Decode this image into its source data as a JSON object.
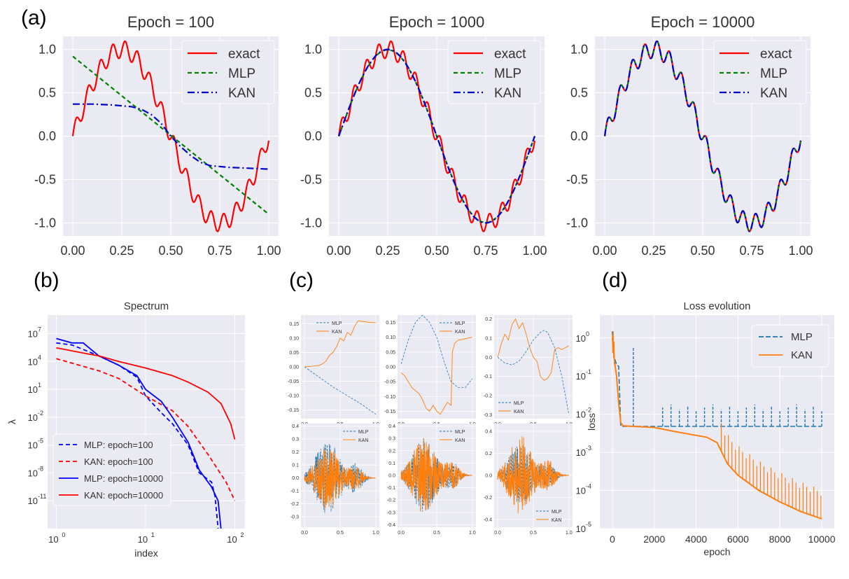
{
  "colors": {
    "panel_bg": "#eaeaf2",
    "grid": "#ffffff",
    "exact": "#ff0000",
    "mlp_a": "#008000",
    "kan_a": "#0000cc",
    "mlp": "#1f77b4",
    "kan": "#ff7f0e",
    "spec_blue": "#0000ff",
    "spec_red": "#ff0000"
  },
  "labels": {
    "a": "(a)",
    "b": "(b)",
    "c": "(c)",
    "d": "(d)"
  },
  "chart_data": [
    {
      "id": "a1",
      "type": "line",
      "title": "Epoch = 100",
      "x_ticks": [
        "0.00",
        "0.25",
        "0.50",
        "0.75",
        "1.00"
      ],
      "y_ticks": [
        "-1.0",
        "-0.5",
        "0.0",
        "0.5",
        "1.0"
      ],
      "xlim": [
        -0.05,
        1.05
      ],
      "ylim": [
        -1.15,
        1.15
      ],
      "legend": [
        "exact",
        "MLP",
        "KAN"
      ],
      "legend_position": "top-right",
      "series": [
        {
          "name": "exact",
          "kind": "exact"
        },
        {
          "name": "MLP",
          "kind": "line",
          "x": [
            0,
            1
          ],
          "y": [
            0.92,
            -0.9
          ]
        },
        {
          "name": "KAN",
          "kind": "poly",
          "x": [
            0,
            0.1,
            0.2,
            0.3,
            0.35,
            0.4,
            0.45,
            0.5,
            0.55,
            0.6,
            0.65,
            0.7,
            0.8,
            0.9,
            1.0
          ],
          "y": [
            0.37,
            0.37,
            0.36,
            0.34,
            0.31,
            0.25,
            0.15,
            0.0,
            -0.12,
            -0.22,
            -0.3,
            -0.34,
            -0.36,
            -0.37,
            -0.38
          ]
        }
      ]
    },
    {
      "id": "a2",
      "type": "line",
      "title": "Epoch = 1000",
      "x_ticks": [
        "0.00",
        "0.25",
        "0.50",
        "0.75",
        "1.00"
      ],
      "y_ticks": [
        "-1.0",
        "-0.5",
        "0.0",
        "0.5",
        "1.0"
      ],
      "xlim": [
        -0.05,
        1.05
      ],
      "ylim": [
        -1.15,
        1.15
      ],
      "legend": [
        "exact",
        "MLP",
        "KAN"
      ],
      "legend_position": "top-right",
      "series": [
        {
          "name": "exact",
          "kind": "exact"
        },
        {
          "name": "MLP",
          "kind": "sine",
          "amp": 0.995
        },
        {
          "name": "KAN",
          "kind": "sine",
          "amp": 1.0
        }
      ]
    },
    {
      "id": "a3",
      "type": "line",
      "title": "Epoch = 10000",
      "x_ticks": [
        "0.00",
        "0.25",
        "0.50",
        "0.75",
        "1.00"
      ],
      "y_ticks": [
        "-1.0",
        "-0.5",
        "0.0",
        "0.5",
        "1.0"
      ],
      "xlim": [
        -0.05,
        1.05
      ],
      "ylim": [
        -1.15,
        1.15
      ],
      "legend": [
        "exact",
        "MLP",
        "KAN"
      ],
      "legend_position": "top-right",
      "series": [
        {
          "name": "exact",
          "kind": "exact"
        },
        {
          "name": "MLP",
          "kind": "exact"
        },
        {
          "name": "KAN",
          "kind": "exact"
        }
      ]
    },
    {
      "id": "b",
      "type": "line",
      "title": "Spectrum",
      "xlabel": "index",
      "ylabel": "λ",
      "xscale": "log",
      "yscale": "log",
      "xlim": [
        0.8,
        130
      ],
      "ylim": [
        1e-14,
        1000000000.0
      ],
      "x_ticks": [
        {
          "v": 1,
          "t": "10",
          "e": "0"
        },
        {
          "v": 10,
          "t": "10",
          "e": "1"
        },
        {
          "v": 100,
          "t": "10",
          "e": "2"
        }
      ],
      "y_ticks": [
        {
          "v": 10000000.0,
          "t": "10",
          "e": "7"
        },
        {
          "v": 10000.0,
          "t": "10",
          "e": "4"
        },
        {
          "v": 10,
          "t": "10",
          "e": "1"
        },
        {
          "v": 0.01,
          "t": "10",
          "e": "-2"
        },
        {
          "v": 1e-05,
          "t": "10",
          "e": "-5"
        },
        {
          "v": 1e-08,
          "t": "10",
          "e": "-8"
        },
        {
          "v": 1e-11,
          "t": "10",
          "e": "-11"
        }
      ],
      "legend": [
        "MLP: epoch=100",
        "KAN: epoch=100",
        "MLP: epoch=10000",
        "KAN: epoch=10000"
      ],
      "legend_position": "lower-left",
      "series": [
        {
          "name": "MLP: epoch=100",
          "x": [
            1,
            1.5,
            2,
            3,
            5,
            8,
            10,
            15,
            20,
            30,
            40,
            55,
            60,
            65
          ],
          "y": [
            1000000.0,
            600000.0,
            200000.0,
            40000.0,
            4000.0,
            200,
            2,
            0.03,
            0.002,
            1e-05,
            1e-08,
            1e-09,
            3e-11,
            1e-14
          ]
        },
        {
          "name": "KAN: epoch=100",
          "x": [
            1,
            2,
            3,
            5,
            10,
            20,
            30,
            50,
            80,
            100
          ],
          "y": [
            20000.0,
            3000.0,
            1000.0,
            150,
            2,
            0.05,
            0.001,
            1e-06,
            1e-09,
            1e-11
          ]
        },
        {
          "name": "MLP: epoch=10000",
          "x": [
            1,
            1.5,
            2,
            3,
            5,
            8,
            10,
            15,
            20,
            30,
            40,
            55,
            65,
            70
          ],
          "y": [
            3000000.0,
            1000000.0,
            1000000.0,
            40000.0,
            4000.0,
            300,
            10,
            0.5,
            0.01,
            2e-05,
            2e-08,
            3e-10,
            1e-11,
            1e-14
          ]
        },
        {
          "name": "KAN: epoch=10000",
          "x": [
            1,
            2,
            3,
            5,
            10,
            20,
            30,
            50,
            70,
            90,
            100
          ],
          "y": [
            300000.0,
            80000.0,
            40000.0,
            10000.0,
            2000.0,
            300,
            60,
            5,
            0.3,
            0.002,
            4e-05
          ]
        }
      ]
    },
    {
      "id": "c1",
      "type": "line",
      "xlim": [
        -0.05,
        1.05
      ],
      "ylim": [
        -0.18,
        0.18
      ],
      "x_ticks": [
        "0.0",
        "0.5",
        "1.0"
      ],
      "y_ticks": [
        "0.15",
        "0.10",
        "0.05",
        "0.00",
        "-0.05",
        "-0.10",
        "-0.15"
      ],
      "legend": [
        "MLP",
        "KAN"
      ],
      "legend_position": "top-center",
      "series": [
        {
          "name": "MLP",
          "x": [
            0,
            0.2,
            0.4,
            0.6,
            0.8,
            1.0
          ],
          "y": [
            0,
            -0.035,
            -0.07,
            -0.1,
            -0.13,
            -0.165
          ]
        },
        {
          "name": "KAN",
          "x": [
            0,
            0.1,
            0.2,
            0.25,
            0.3,
            0.35,
            0.4,
            0.45,
            0.5,
            0.55,
            0.6,
            0.65,
            0.7,
            0.75,
            0.8,
            0.85,
            0.9,
            1.0
          ],
          "y": [
            0,
            0.002,
            0.005,
            0.01,
            0.02,
            0.04,
            0.05,
            0.07,
            0.1,
            0.09,
            0.12,
            0.11,
            0.14,
            0.16,
            0.158,
            0.157,
            0.155,
            0.153
          ]
        }
      ]
    },
    {
      "id": "c2",
      "type": "line",
      "xlim": [
        -0.05,
        1.05
      ],
      "ylim": [
        -0.175,
        0.175
      ],
      "x_ticks": [
        "0.0",
        "0.5",
        "1.0"
      ],
      "y_ticks": [
        "0.15",
        "0.10",
        "0.05",
        "0.00",
        "-0.05",
        "-0.10",
        "-0.15"
      ],
      "legend": [
        "MLP",
        "KAN"
      ],
      "legend_position": "top-right",
      "series": [
        {
          "name": "MLP",
          "x": [
            0,
            0.1,
            0.2,
            0.3,
            0.4,
            0.5,
            0.6,
            0.7,
            0.8,
            0.9,
            1.0
          ],
          "y": [
            0.01,
            0.09,
            0.15,
            0.175,
            0.15,
            0.1,
            0.02,
            -0.05,
            -0.07,
            -0.07,
            -0.04
          ]
        },
        {
          "name": "KAN",
          "x": [
            0,
            0.05,
            0.1,
            0.15,
            0.2,
            0.25,
            0.3,
            0.35,
            0.4,
            0.45,
            0.5,
            0.55,
            0.6,
            0.65,
            0.7,
            0.72,
            0.75,
            0.8,
            0.9,
            1.0
          ],
          "y": [
            -0.02,
            -0.03,
            -0.05,
            -0.07,
            -0.08,
            -0.09,
            -0.11,
            -0.14,
            -0.15,
            -0.13,
            -0.15,
            -0.16,
            -0.14,
            -0.12,
            -0.13,
            0.05,
            0.08,
            0.09,
            0.095,
            0.1
          ]
        }
      ]
    },
    {
      "id": "c3",
      "type": "line",
      "xlim": [
        -0.05,
        1.05
      ],
      "ylim": [
        -0.32,
        0.22
      ],
      "x_ticks": [
        "0.0",
        "0.5",
        "1.0"
      ],
      "y_ticks": [
        "0.2",
        "0.1",
        "0.0",
        "-0.1",
        "-0.2",
        "-0.3"
      ],
      "legend": [
        "MLP",
        "KAN"
      ],
      "legend_position": "lower-left",
      "series": [
        {
          "name": "MLP",
          "x": [
            0,
            0.1,
            0.2,
            0.3,
            0.4,
            0.5,
            0.6,
            0.65,
            0.7,
            0.8,
            0.9,
            1.0
          ],
          "y": [
            0,
            -0.03,
            -0.04,
            -0.02,
            0.03,
            0.09,
            0.13,
            0.14,
            0.13,
            0.05,
            -0.1,
            -0.3
          ]
        },
        {
          "name": "KAN",
          "x": [
            0,
            0.05,
            0.1,
            0.15,
            0.2,
            0.25,
            0.3,
            0.35,
            0.4,
            0.45,
            0.5,
            0.55,
            0.6,
            0.65,
            0.7,
            0.75,
            0.8,
            0.85,
            0.9,
            1.0
          ],
          "y": [
            0,
            0.07,
            0.12,
            0.09,
            0.17,
            0.2,
            0.15,
            0.18,
            0.12,
            0.05,
            0,
            -0.02,
            -0.1,
            -0.12,
            -0.11,
            -0.08,
            0.04,
            0.05,
            0.04,
            0.06
          ]
        }
      ]
    },
    {
      "id": "c4",
      "type": "line",
      "xlim": [
        -0.05,
        1.05
      ],
      "ylim": [
        -0.38,
        0.42
      ],
      "x_ticks": [
        "0.0",
        "0.5",
        "1.0"
      ],
      "y_ticks": [
        "0.4",
        "0.3",
        "0.2",
        "0.1",
        "0.0",
        "-0.1",
        "-0.2",
        "-0.3"
      ],
      "legend": [
        "MLP",
        "KAN"
      ],
      "legend_position": "top-right",
      "noise": {
        "mlp_amp": 0.3,
        "kan_amp": 0.27
      }
    },
    {
      "id": "c5",
      "type": "line",
      "xlim": [
        -0.05,
        1.05
      ],
      "ylim": [
        -0.42,
        0.42
      ],
      "x_ticks": [
        "0.0",
        "0.5",
        "1.0"
      ],
      "y_ticks": [
        "0.4",
        "0.3",
        "0.2",
        "0.1",
        "0.0",
        "-0.1",
        "-0.2",
        "-0.3",
        "-0.4"
      ],
      "legend": [
        "MLP",
        "KAN"
      ],
      "legend_position": "top-right",
      "noise": {
        "mlp_amp": 0.3,
        "kan_amp": 0.35
      }
    },
    {
      "id": "c6",
      "type": "line",
      "xlim": [
        -0.05,
        1.05
      ],
      "ylim": [
        -0.47,
        0.47
      ],
      "x_ticks": [
        "0.0",
        "0.5",
        "1.0"
      ],
      "y_ticks": [
        "0.4",
        "0.2",
        "0.0",
        "-0.2",
        "-0.4"
      ],
      "legend": [
        "MLP",
        "KAN"
      ],
      "legend_position": "lower-right",
      "noise": {
        "mlp_amp": 0.28,
        "kan_amp": 0.4
      }
    },
    {
      "id": "d",
      "type": "line",
      "title": "Loss evolution",
      "xlabel": "epoch",
      "ylabel": "loss",
      "yscale": "log",
      "xlim": [
        -600,
        10600
      ],
      "ylim": [
        1e-05,
        4
      ],
      "x_ticks": [
        "0",
        "2000",
        "4000",
        "6000",
        "8000",
        "10000"
      ],
      "y_ticks": [
        {
          "v": 1,
          "t": "10",
          "e": "0"
        },
        {
          "v": 0.1,
          "t": "10",
          "e": "-1"
        },
        {
          "v": 0.01,
          "t": "10",
          "e": "-2"
        },
        {
          "v": 0.001,
          "t": "10",
          "e": "-3"
        },
        {
          "v": 0.0001,
          "t": "10",
          "e": "-4"
        },
        {
          "v": 1e-05,
          "t": "10",
          "e": "-5"
        }
      ],
      "legend": [
        "MLP",
        "KAN"
      ],
      "legend_position": "top-right",
      "series": [
        {
          "name": "MLP",
          "x": [
            0,
            50,
            100,
            200,
            300,
            400,
            1000,
            2000,
            5000,
            10000
          ],
          "y": [
            1.5,
            0.5,
            0.3,
            0.2,
            0.18,
            0.0048,
            0.0048,
            0.0048,
            0.0048,
            0.0048
          ],
          "spikes": [
            1000,
            2400,
            2800,
            3200,
            3600,
            4000,
            4400,
            4800,
            5200,
            5600,
            6000,
            6400,
            6800,
            7200,
            7600,
            8000,
            8400,
            8800,
            9200,
            9600,
            10000
          ]
        },
        {
          "name": "KAN",
          "x": [
            0,
            100,
            200,
            300,
            400,
            500,
            1000,
            2000,
            3000,
            4000,
            4500,
            5000,
            5500,
            6000,
            7000,
            8000,
            9000,
            10000
          ],
          "y": [
            1.0,
            0.25,
            0.1,
            0.02,
            0.006,
            0.005,
            0.0048,
            0.0045,
            0.0035,
            0.0028,
            0.0025,
            0.0018,
            0.0005,
            0.00025,
            0.0001,
            5e-05,
            2.8e-05,
            1.8e-05
          ]
        }
      ]
    }
  ]
}
